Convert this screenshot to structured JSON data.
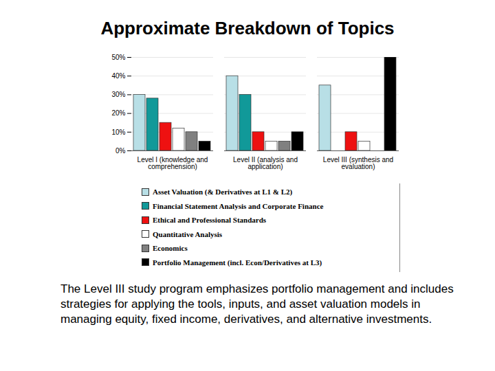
{
  "chart_data": {
    "type": "bar",
    "title": "Approximate Breakdown of Topics",
    "categories": [
      "Level I (knowledge and comprehension)",
      "Level II (analysis and application)",
      "Level III (synthesis and evaluation)"
    ],
    "series": [
      {
        "name": "Asset Valuation (& Derivatives at L1 & L2)",
        "color": "#b8dfe6",
        "values": [
          30,
          40,
          35
        ]
      },
      {
        "name": "Financial Statement Analysis and Corporate Finance",
        "color": "#119999",
        "values": [
          28,
          30,
          null
        ]
      },
      {
        "name": "Ethical and Professional Standards",
        "color": "#ee1111",
        "values": [
          15,
          10,
          10
        ]
      },
      {
        "name": "Quantitative Analysis",
        "color": "#ffffff",
        "values": [
          12,
          5,
          5
        ]
      },
      {
        "name": "Economics",
        "color": "#808080",
        "values": [
          10,
          5,
          null
        ]
      },
      {
        "name": "Portfolio Management (incl. Econ/Derivatives at L3)",
        "color": "#000000",
        "values": [
          5,
          10,
          50
        ]
      }
    ],
    "ylim": [
      0,
      50
    ],
    "yticks": [
      {
        "value": 0,
        "label": "0%"
      },
      {
        "value": 10,
        "label": "10%"
      },
      {
        "value": 20,
        "label": "20%"
      },
      {
        "value": 30,
        "label": "30%"
      },
      {
        "value": 40,
        "label": "40%"
      },
      {
        "value": 50,
        "label": "50%"
      }
    ],
    "grid": true,
    "legend": "bottom",
    "caption": "The Level III study program emphasizes portfolio management and includes strategies for applying the tools, inputs, and asset valuation models in managing equity, fixed income, derivatives, and alternative investments."
  }
}
